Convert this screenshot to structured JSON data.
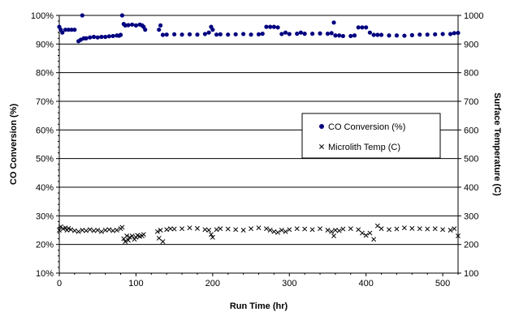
{
  "chart_data": {
    "type": "scatter",
    "title": "",
    "xlabel": "Run Time (hr)",
    "ylabel_left": "CO Conversion (%)",
    "ylabel_right": "Surface Temperature (C)",
    "xlim": [
      0,
      520
    ],
    "ylim_left": [
      10,
      100
    ],
    "ylim_right": [
      100,
      1000
    ],
    "x_ticks": [
      "0",
      "100",
      "200",
      "300",
      "400",
      "500"
    ],
    "y_left_ticks": [
      "10%",
      "20%",
      "30%",
      "40%",
      "50%",
      "60%",
      "70%",
      "80%",
      "90%",
      "100%"
    ],
    "y_right_ticks": [
      "100",
      "200",
      "300",
      "400",
      "500",
      "600",
      "700",
      "800",
      "900",
      "1000"
    ],
    "grid": "horizontal",
    "legend_position": "center-right",
    "series": [
      {
        "name": "CO Conversion (%)",
        "axis": "left",
        "marker": "dot",
        "color": "#000080",
        "x": [
          0,
          2,
          4,
          8,
          12,
          16,
          20,
          25,
          28,
          30,
          32,
          35,
          40,
          45,
          50,
          55,
          60,
          65,
          70,
          75,
          78,
          80,
          82,
          84,
          86,
          90,
          95,
          100,
          105,
          108,
          110,
          112,
          130,
          132,
          135,
          140,
          150,
          160,
          170,
          180,
          190,
          195,
          198,
          200,
          205,
          210,
          220,
          230,
          240,
          250,
          260,
          265,
          270,
          275,
          280,
          285,
          290,
          295,
          300,
          310,
          315,
          320,
          330,
          340,
          350,
          355,
          358,
          360,
          365,
          370,
          380,
          385,
          390,
          395,
          400,
          405,
          410,
          415,
          420,
          430,
          440,
          450,
          460,
          470,
          480,
          490,
          500,
          510,
          515,
          520
        ],
        "y": [
          96,
          95,
          94,
          95,
          95,
          95,
          95,
          91,
          91.5,
          100,
          92,
          92,
          92.3,
          92.5,
          92.3,
          92.5,
          92.5,
          92.7,
          92.8,
          93,
          92.9,
          93.2,
          100,
          97,
          96.5,
          96.6,
          96.8,
          96.5,
          96.8,
          96.5,
          96,
          95,
          95,
          96.5,
          93.2,
          93.3,
          93.4,
          93.3,
          93.4,
          93.3,
          93.5,
          94,
          96,
          95,
          93.3,
          93.4,
          93.3,
          93.4,
          93.5,
          93.3,
          93.4,
          93.6,
          96,
          96,
          96,
          95.8,
          93.5,
          94,
          93.5,
          93.6,
          94,
          93.6,
          93.6,
          93.7,
          93.6,
          93.8,
          97.5,
          93,
          93,
          92.8,
          92.8,
          93,
          95.8,
          95.8,
          95.8,
          94,
          93.2,
          93.2,
          93.2,
          93,
          93,
          92.9,
          93.1,
          93.3,
          93.3,
          93.4,
          93.5,
          93.5,
          93.8,
          93.9
        ]
      },
      {
        "name": "Microlith Temp (C)",
        "axis": "right",
        "marker": "x",
        "color": "#000000",
        "x": [
          0,
          2,
          5,
          8,
          10,
          12,
          15,
          20,
          25,
          30,
          35,
          40,
          45,
          50,
          55,
          60,
          65,
          70,
          75,
          80,
          82,
          84,
          86,
          88,
          90,
          92,
          95,
          98,
          100,
          102,
          105,
          108,
          110,
          128,
          130,
          132,
          135,
          140,
          145,
          150,
          160,
          170,
          180,
          190,
          195,
          198,
          200,
          205,
          210,
          220,
          230,
          240,
          250,
          260,
          270,
          275,
          280,
          285,
          290,
          295,
          300,
          310,
          320,
          330,
          340,
          350,
          355,
          358,
          360,
          365,
          370,
          380,
          390,
          395,
          400,
          405,
          410,
          415,
          420,
          430,
          440,
          450,
          460,
          470,
          480,
          490,
          500,
          510,
          515,
          520
        ],
        "y": [
          250,
          262,
          255,
          258,
          250,
          256,
          252,
          248,
          245,
          250,
          248,
          252,
          248,
          250,
          245,
          250,
          252,
          248,
          250,
          255,
          260,
          220,
          210,
          230,
          215,
          225,
          230,
          218,
          225,
          232,
          228,
          230,
          235,
          245,
          222,
          250,
          210,
          252,
          255,
          254,
          255,
          258,
          256,
          252,
          250,
          235,
          225,
          252,
          255,
          254,
          252,
          250,
          255,
          258,
          255,
          250,
          245,
          242,
          250,
          245,
          252,
          255,
          254,
          252,
          255,
          250,
          245,
          230,
          250,
          248,
          254,
          255,
          252,
          240,
          232,
          240,
          218,
          265,
          255,
          252,
          254,
          258,
          256,
          255,
          254,
          255,
          252,
          250,
          255,
          230
        ]
      }
    ]
  }
}
